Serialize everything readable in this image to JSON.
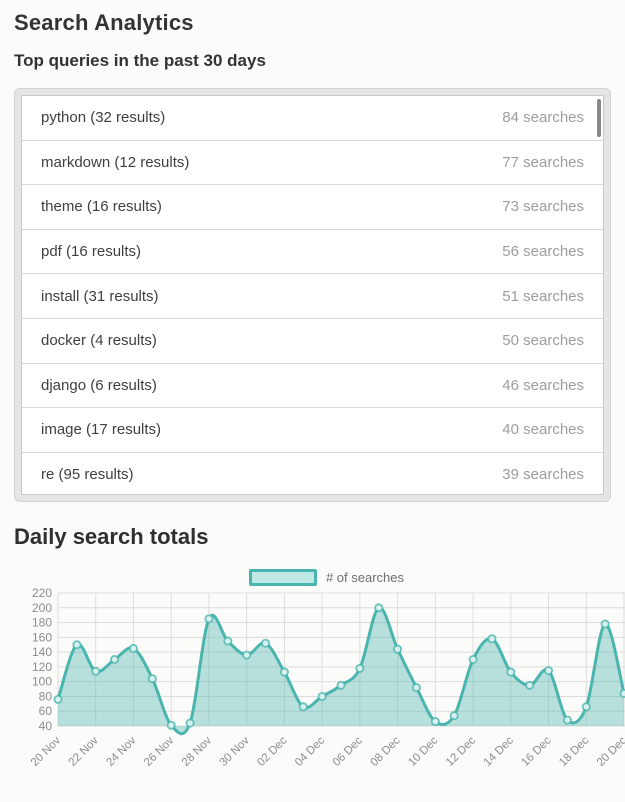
{
  "page": {
    "title": "Search Analytics",
    "subtitle": "Top queries in the past 30 days",
    "chart_heading": "Daily search totals"
  },
  "queries": [
    {
      "label": "python (32 results)",
      "count": "84 searches"
    },
    {
      "label": "markdown (12 results)",
      "count": "77 searches"
    },
    {
      "label": "theme (16 results)",
      "count": "73 searches"
    },
    {
      "label": "pdf (16 results)",
      "count": "56 searches"
    },
    {
      "label": "install (31 results)",
      "count": "51 searches"
    },
    {
      "label": "docker (4 results)",
      "count": "50 searches"
    },
    {
      "label": "django (6 results)",
      "count": "46 searches"
    },
    {
      "label": "image (17 results)",
      "count": "40 searches"
    },
    {
      "label": "re (95 results)",
      "count": "39 searches"
    }
  ],
  "chart_data": {
    "type": "area",
    "title": "Daily search totals",
    "legend": "# of searches",
    "legend_position": "top-center",
    "grid": true,
    "x": [
      "20 Nov",
      "21 Nov",
      "22 Nov",
      "23 Nov",
      "24 Nov",
      "25 Nov",
      "26 Nov",
      "27 Nov",
      "28 Nov",
      "29 Nov",
      "30 Nov",
      "01 Dec",
      "02 Dec",
      "03 Dec",
      "04 Dec",
      "05 Dec",
      "06 Dec",
      "07 Dec",
      "08 Dec",
      "09 Dec",
      "10 Dec",
      "11 Dec",
      "12 Dec",
      "13 Dec",
      "14 Dec",
      "15 Dec",
      "16 Dec",
      "17 Dec",
      "18 Dec",
      "19 Dec",
      "20 Dec"
    ],
    "values": [
      76,
      150,
      114,
      130,
      145,
      104,
      41,
      44,
      185,
      155,
      136,
      152,
      113,
      66,
      80,
      95,
      118,
      200,
      144,
      92,
      46,
      54,
      130,
      158,
      113,
      95,
      115,
      48,
      66,
      178,
      84
    ],
    "x_tick_labels": [
      "20 Nov",
      "22 Nov",
      "24 Nov",
      "26 Nov",
      "28 Nov",
      "30 Nov",
      "02 Dec",
      "04 Dec",
      "06 Dec",
      "08 Dec",
      "10 Dec",
      "12 Dec",
      "14 Dec",
      "16 Dec",
      "18 Dec",
      "20 Dec"
    ],
    "y_ticks": [
      40,
      60,
      80,
      100,
      120,
      140,
      160,
      180,
      200,
      220
    ],
    "ylim": [
      40,
      220
    ],
    "xlabel": "",
    "ylabel": ""
  },
  "colors": {
    "accent": "#4ab5ae",
    "area_fill": "rgba(74,181,174,0.38)",
    "point_fill": "#d8f1ef",
    "swatch_fill": "#bfe7e4",
    "grid": "#dcdcdc",
    "axis_label": "#8c8c8c"
  }
}
